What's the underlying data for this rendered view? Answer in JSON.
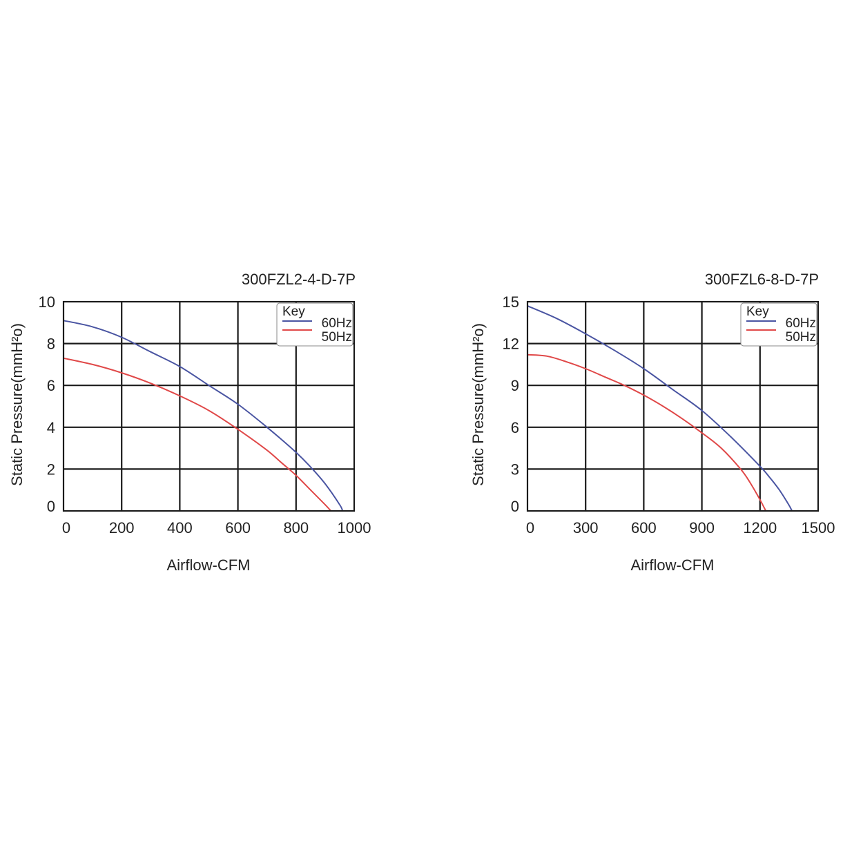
{
  "chart_data": [
    {
      "type": "line",
      "title": "300FZL2-4-D-7P",
      "xlabel": "Airflow-CFM",
      "ylabel": "Static Pressure(mmH²o)",
      "xlim": [
        0,
        1000
      ],
      "ylim": [
        0,
        10
      ],
      "xticks": [
        "0",
        "200",
        "400",
        "600",
        "800",
        "1000"
      ],
      "yticks": [
        "0",
        "2",
        "4",
        "6",
        "8",
        "10"
      ],
      "grid": true,
      "legend": {
        "title": "Key",
        "placement": "top-right"
      },
      "series": [
        {
          "name": "60Hz",
          "color": "#4a55a2",
          "x": [
            0,
            100,
            200,
            300,
            400,
            500,
            600,
            700,
            800,
            850,
            900,
            950,
            960
          ],
          "y": [
            9.1,
            8.8,
            8.3,
            7.6,
            6.9,
            6.0,
            5.1,
            4.0,
            2.8,
            2.1,
            1.3,
            0.3,
            0
          ]
        },
        {
          "name": "50Hz",
          "color": "#e04848",
          "x": [
            0,
            100,
            200,
            300,
            400,
            500,
            600,
            700,
            750,
            800,
            850,
            900,
            920
          ],
          "y": [
            7.3,
            7.0,
            6.6,
            6.1,
            5.5,
            4.8,
            3.9,
            2.9,
            2.3,
            1.7,
            1.0,
            0.3,
            0
          ]
        }
      ]
    },
    {
      "type": "line",
      "title": "300FZL6-8-D-7P",
      "xlabel": "Airflow-CFM",
      "ylabel": "Static Pressure(mmH²o)",
      "xlim": [
        0,
        1500
      ],
      "ylim": [
        0,
        15
      ],
      "xticks": [
        "0",
        "300",
        "600",
        "900",
        "1200",
        "1500"
      ],
      "yticks": [
        "0",
        "3",
        "6",
        "9",
        "12",
        "15"
      ],
      "grid": true,
      "legend": {
        "title": "Key",
        "placement": "top-right"
      },
      "series": [
        {
          "name": "60Hz",
          "color": "#4a55a2",
          "x": [
            0,
            150,
            300,
            450,
            600,
            750,
            900,
            1050,
            1200,
            1250,
            1300,
            1350,
            1365
          ],
          "y": [
            14.7,
            13.8,
            12.7,
            11.5,
            10.2,
            8.7,
            7.2,
            5.3,
            3.2,
            2.4,
            1.5,
            0.4,
            0
          ]
        },
        {
          "name": "50Hz",
          "color": "#e04848",
          "x": [
            0,
            100,
            200,
            300,
            400,
            500,
            600,
            700,
            800,
            900,
            1000,
            1100,
            1150,
            1200,
            1230
          ],
          "y": [
            11.2,
            11.1,
            10.7,
            10.2,
            9.6,
            9.0,
            8.3,
            7.5,
            6.6,
            5.6,
            4.5,
            3.0,
            2.0,
            0.8,
            0
          ]
        }
      ]
    }
  ]
}
